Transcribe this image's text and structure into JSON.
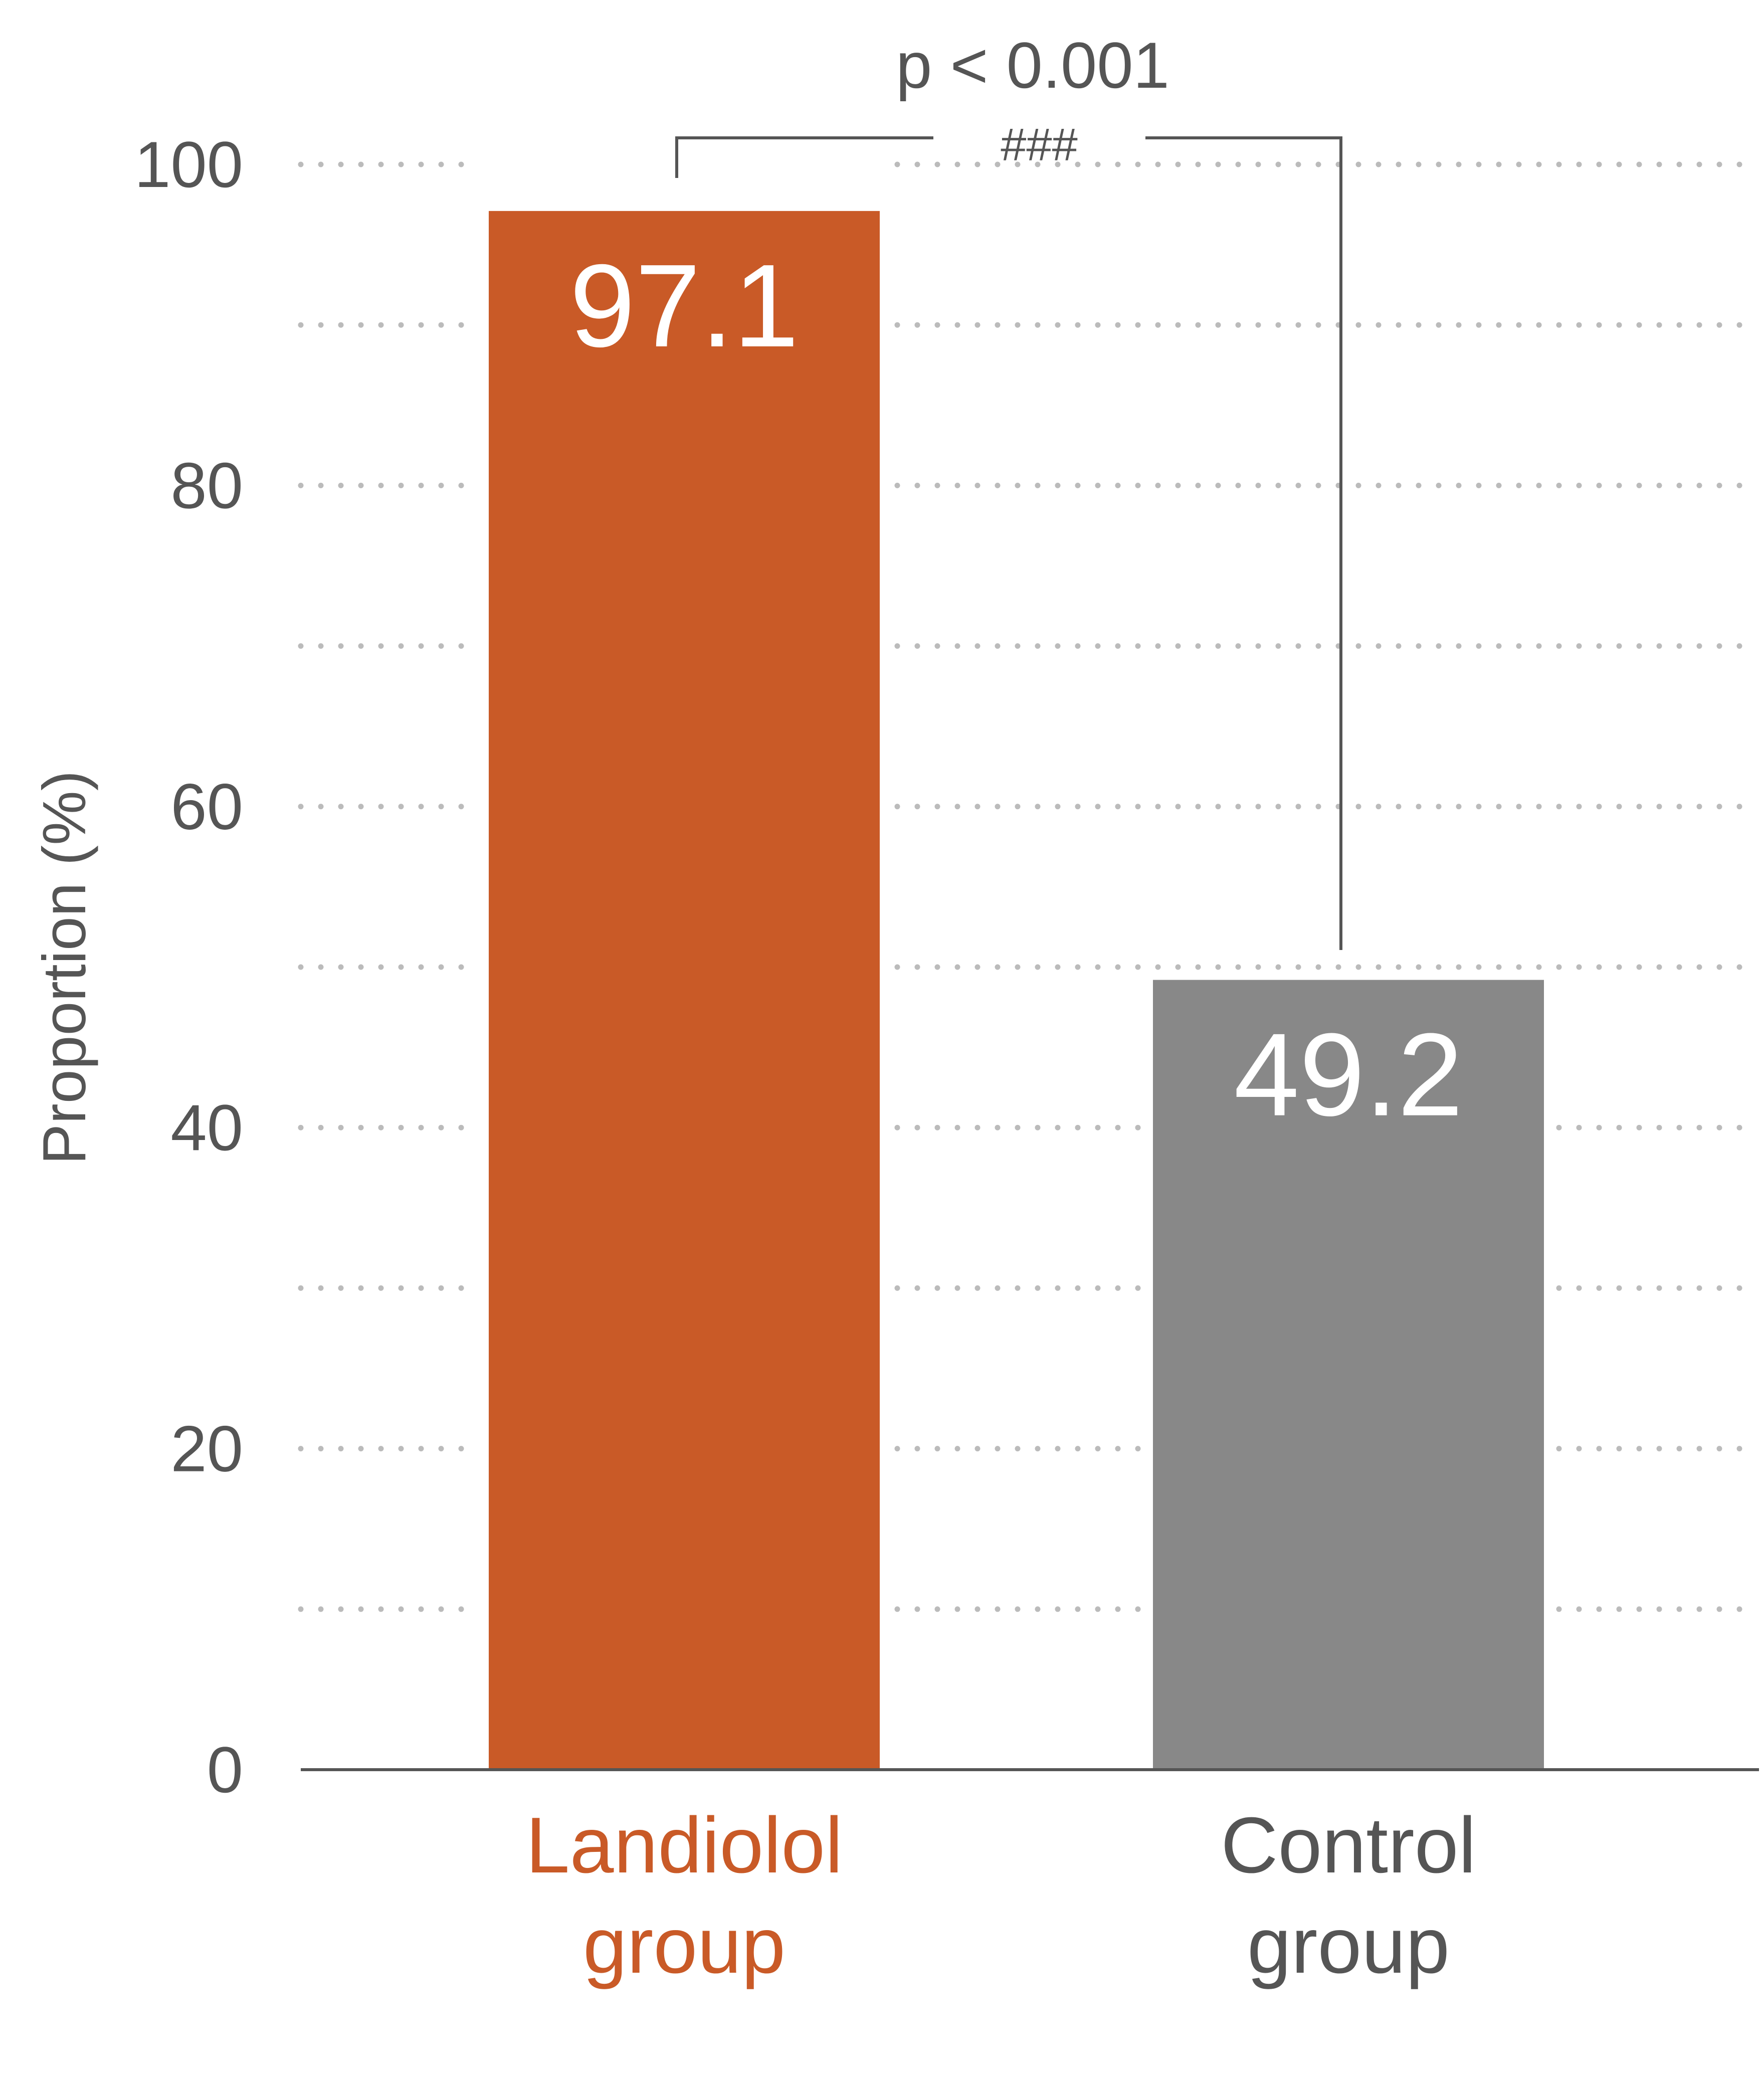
{
  "chart_data": {
    "type": "bar",
    "categories": [
      "Landiolol group",
      "Control group"
    ],
    "category_lines": [
      [
        "Landiolol",
        "group"
      ],
      [
        "Control",
        "group"
      ]
    ],
    "values": [
      97.1,
      49.2
    ],
    "value_labels": [
      "97.1",
      "49.2"
    ],
    "bar_colors": [
      "#C95A27",
      "#888888"
    ],
    "category_label_colors": [
      "#C95A27",
      "#555555"
    ],
    "ylabel": "Proportion (%)",
    "ylim": [
      0,
      100
    ],
    "yticks": [
      0,
      20,
      40,
      60,
      80,
      100
    ],
    "ytick_labels": [
      "0",
      "20",
      "40",
      "60",
      "80",
      "100"
    ],
    "minor_gridlines": [
      10,
      30,
      50,
      70,
      90
    ],
    "grid": true,
    "grid_style": "dotted",
    "significance": {
      "text": "p < 0.001",
      "symbol": "###",
      "between": [
        "Landiolol group",
        "Control group"
      ]
    }
  }
}
